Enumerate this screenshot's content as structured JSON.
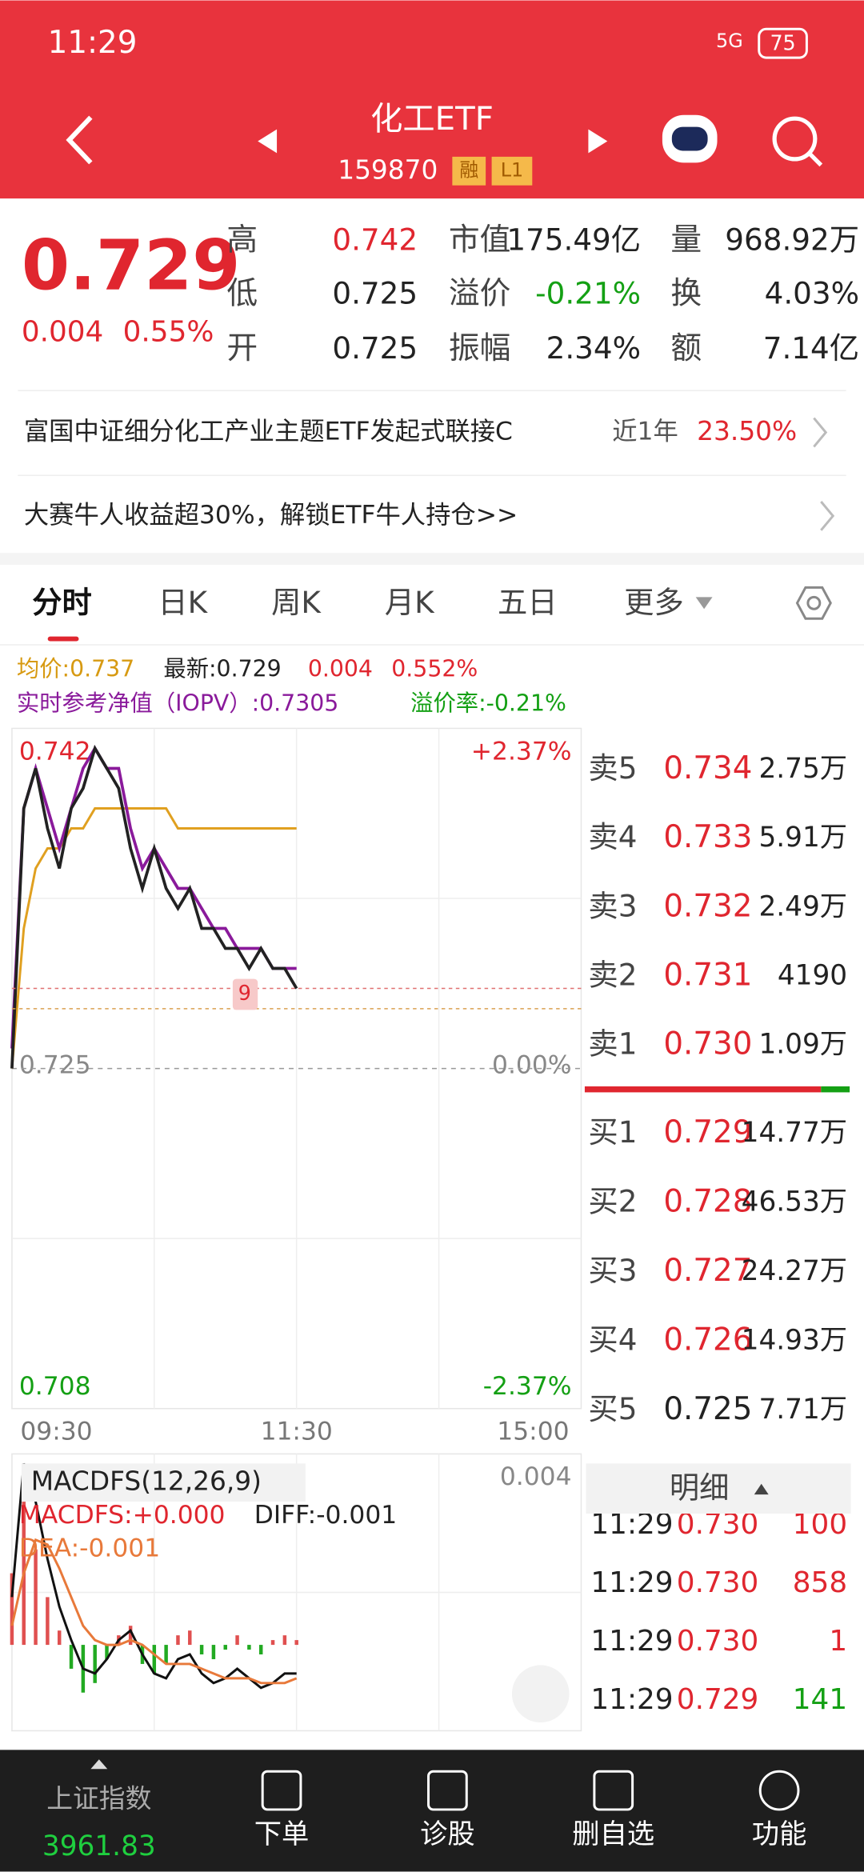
{
  "status": {
    "time": "11:29",
    "network": "5G",
    "battery": "75"
  },
  "header": {
    "title": "化工ETF",
    "code": "159870",
    "badges": [
      "融",
      "L1"
    ]
  },
  "quote": {
    "price": "0.729",
    "change": "0.004",
    "percent": "0.55%",
    "stats": [
      {
        "label": "高",
        "value": "0.742"
      },
      {
        "label": "市值",
        "value": "175.49亿"
      },
      {
        "label": "量",
        "value": "968.92万"
      },
      {
        "label": "低",
        "value": "0.725"
      },
      {
        "label": "溢价",
        "value": "-0.21%"
      },
      {
        "label": "换",
        "value": "4.03%"
      },
      {
        "label": "开",
        "value": "0.725"
      },
      {
        "label": "振幅",
        "value": "2.34%"
      },
      {
        "label": "额",
        "value": "7.14亿"
      }
    ]
  },
  "fund_link": {
    "name": "富国中证细分化工产业主题ETF发起式联接C",
    "period": "近1年",
    "return": "23.50%"
  },
  "promo": "大赛牛人收益超30%，解锁ETF牛人持仓>>",
  "tabs": [
    "分时",
    "日K",
    "周K",
    "月K",
    "五日",
    "更多"
  ],
  "legend": {
    "avg": "均价:0.737",
    "latest": "最新:0.729",
    "change": "0.004",
    "percent": "0.552%",
    "iopv": "实时参考净值（IOPV）:0.7305",
    "premium": "溢价率:-0.21%"
  },
  "chart_data": {
    "type": "line",
    "x": [
      0,
      5,
      10,
      15,
      20,
      25,
      30,
      35,
      40,
      45,
      50,
      55,
      60,
      65,
      70,
      75,
      80,
      85,
      90,
      95,
      100,
      105,
      110,
      115,
      120
    ],
    "xlim": [
      0,
      240
    ],
    "xticks": [
      {
        "value": 0,
        "label": "09:30"
      },
      {
        "value": 120,
        "label": "11:30"
      },
      {
        "value": 240,
        "label": "15:00"
      }
    ],
    "ylim": [
      0.708,
      0.742
    ],
    "yticks": [
      0.742,
      0.725,
      0.708
    ],
    "y2lim": [
      -2.37,
      2.37
    ],
    "y2ticks": [
      {
        "value": 2.37,
        "label": "+2.37%"
      },
      {
        "value": 0,
        "label": "0.00%"
      },
      {
        "value": -2.37,
        "label": "-2.37%"
      }
    ],
    "series": [
      {
        "name": "最新",
        "color": "#222222",
        "values": [
          0.725,
          0.738,
          0.74,
          0.737,
          0.735,
          0.738,
          0.739,
          0.741,
          0.74,
          0.739,
          0.736,
          0.734,
          0.736,
          0.734,
          0.733,
          0.734,
          0.732,
          0.732,
          0.731,
          0.731,
          0.73,
          0.731,
          0.73,
          0.73,
          0.729
        ]
      },
      {
        "name": "IOPV",
        "color": "#8a1a9b",
        "values": [
          0.726,
          0.738,
          0.74,
          0.738,
          0.736,
          0.738,
          0.74,
          0.741,
          0.74,
          0.74,
          0.737,
          0.735,
          0.736,
          0.735,
          0.734,
          0.734,
          0.733,
          0.732,
          0.732,
          0.731,
          0.731,
          0.731,
          0.73,
          0.73,
          0.73
        ]
      },
      {
        "name": "均价",
        "color": "#e0a020",
        "values": [
          0.725,
          0.732,
          0.735,
          0.736,
          0.736,
          0.737,
          0.737,
          0.738,
          0.738,
          0.738,
          0.738,
          0.738,
          0.738,
          0.738,
          0.737,
          0.737,
          0.737,
          0.737,
          0.737,
          0.737,
          0.737,
          0.737,
          0.737,
          0.737,
          0.737
        ]
      }
    ],
    "marker": "9"
  },
  "macd": {
    "title": "MACDFS(12,26,9)",
    "macdfs": "MACDFS:+0.000",
    "diff": "DIFF:-0.001",
    "dea": "DEA:-0.001",
    "ylim": [
      -0.0018,
      0.004
    ],
    "yticks": [
      0.004
    ],
    "histogram": [
      0.0015,
      0.003,
      0.002,
      0.001,
      0.0003,
      -0.0005,
      -0.001,
      -0.0008,
      -0.0003,
      0.0002,
      0.0004,
      -0.0004,
      -0.0006,
      -0.0004,
      0.0002,
      0.0003,
      -0.0002,
      -0.0003,
      -0.0001,
      0.0002,
      -0.0001,
      -0.0002,
      0.0001,
      0.0002,
      0.0001
    ],
    "diff_values": [
      0.001,
      0.0038,
      0.003,
      0.0018,
      0.0008,
      0.0001,
      -0.0005,
      -0.0006,
      -0.0003,
      0.0001,
      0.0003,
      -0.0002,
      -0.0006,
      -0.0007,
      -0.0003,
      -0.0002,
      -0.0006,
      -0.0008,
      -0.0007,
      -0.0005,
      -0.0007,
      -0.0009,
      -0.0008,
      -0.0006,
      -0.0006
    ],
    "dea_values": [
      0.0004,
      0.0015,
      0.0022,
      0.0021,
      0.0016,
      0.001,
      0.0004,
      0.0001,
      0,
      0,
      0.0001,
      0,
      -0.0002,
      -0.0004,
      -0.0004,
      -0.0004,
      -0.0005,
      -0.0006,
      -0.0007,
      -0.0007,
      -0.0007,
      -0.0008,
      -0.0008,
      -0.0008,
      -0.0007
    ]
  },
  "order_book": {
    "asks": [
      {
        "label": "卖5",
        "price": "0.734",
        "volume": "2.75万"
      },
      {
        "label": "卖4",
        "price": "0.733",
        "volume": "5.91万"
      },
      {
        "label": "卖3",
        "price": "0.732",
        "volume": "2.49万"
      },
      {
        "label": "卖2",
        "price": "0.731",
        "volume": "4190"
      },
      {
        "label": "卖1",
        "price": "0.730",
        "volume": "1.09万"
      }
    ],
    "bids": [
      {
        "label": "买1",
        "price": "0.729",
        "volume": "14.77万"
      },
      {
        "label": "买2",
        "price": "0.728",
        "volume": "46.53万"
      },
      {
        "label": "买3",
        "price": "0.727",
        "volume": "24.27万"
      },
      {
        "label": "买4",
        "price": "0.726",
        "volume": "14.93万"
      },
      {
        "label": "买5",
        "price": "0.725",
        "volume": "7.71万"
      }
    ]
  },
  "details": {
    "title": "明细",
    "trades": [
      {
        "time": "11:29",
        "price": "0.730",
        "volume": "100"
      },
      {
        "time": "11:29",
        "price": "0.730",
        "volume": "858"
      },
      {
        "time": "11:29",
        "price": "0.730",
        "volume": "1"
      },
      {
        "time": "11:29",
        "price": "0.729",
        "volume": "141"
      }
    ]
  },
  "bottom_nav": {
    "index_name": "上证指数",
    "index_value": "3961.83",
    "items": [
      "下单",
      "诊股",
      "删自选",
      "功能"
    ]
  }
}
